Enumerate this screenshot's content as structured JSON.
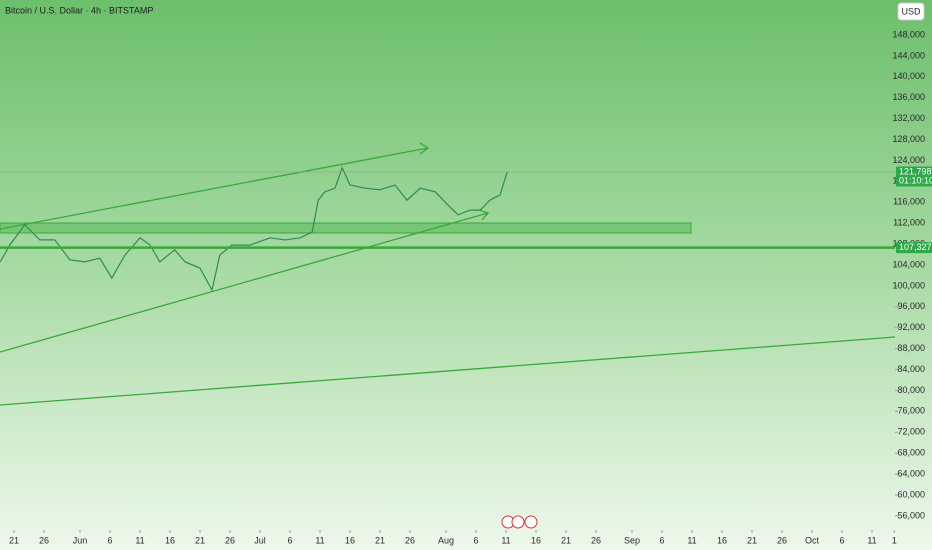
{
  "chart_data": {
    "type": "line",
    "title": "Bitcoin / U.S. Dollar · 4h · BITSTAMP",
    "currency": "USD",
    "color": "#2e8b57",
    "x": [
      -2.3,
      -0.7,
      1.8,
      4.3,
      6.8,
      9.3,
      11.8,
      14.3,
      16.3,
      18.5,
      21,
      22.7,
      24.3,
      26.8,
      28.5,
      31,
      33,
      34.3,
      36.3,
      39.3,
      42.7,
      45.2,
      47.7,
      49.7,
      50.7,
      51.8,
      53.5,
      54.7,
      56,
      58.5,
      61,
      63.5,
      65.5,
      67.7,
      70.2,
      72.3,
      74,
      76,
      77.7,
      79.3,
      81,
      82.2
    ],
    "values": [
      104600,
      107800,
      111700,
      108800,
      108800,
      105000,
      104600,
      105300,
      101500,
      105900,
      109200,
      107800,
      104600,
      106900,
      104600,
      103400,
      99200,
      105900,
      107800,
      107800,
      109200,
      108800,
      109200,
      110300,
      116400,
      118000,
      118700,
      122600,
      119300,
      118700,
      118400,
      119300,
      116400,
      118700,
      118000,
      115500,
      113600,
      114500,
      114500,
      116400,
      117400,
      121798
    ],
    "xlim": [
      -2.33,
      146.83
    ],
    "ylim": [
      53300,
      154700
    ],
    "xticks": [
      {
        "value": 0,
        "label": "21"
      },
      {
        "value": 5,
        "label": "26"
      },
      {
        "value": 11,
        "label": "Jun"
      },
      {
        "value": 16,
        "label": "6"
      },
      {
        "value": 21,
        "label": "11"
      },
      {
        "value": 26,
        "label": "16"
      },
      {
        "value": 31,
        "label": "21"
      },
      {
        "value": 36,
        "label": "26"
      },
      {
        "value": 41,
        "label": "Jul"
      },
      {
        "value": 46,
        "label": "6"
      },
      {
        "value": 51,
        "label": "11"
      },
      {
        "value": 56,
        "label": "16"
      },
      {
        "value": 61,
        "label": "21"
      },
      {
        "value": 66,
        "label": "26"
      },
      {
        "value": 72,
        "label": "Aug"
      },
      {
        "value": 77,
        "label": "6"
      },
      {
        "value": 82,
        "label": "11"
      },
      {
        "value": 87,
        "label": "16"
      },
      {
        "value": 92,
        "label": "21"
      },
      {
        "value": 97,
        "label": "26"
      },
      {
        "value": 103,
        "label": "Sep"
      },
      {
        "value": 108,
        "label": "6"
      },
      {
        "value": 113,
        "label": "11"
      },
      {
        "value": 118,
        "label": "16"
      },
      {
        "value": 123,
        "label": "21"
      },
      {
        "value": 128,
        "label": "26"
      },
      {
        "value": 133,
        "label": "Oct"
      },
      {
        "value": 138,
        "label": "6"
      },
      {
        "value": 143,
        "label": "11"
      },
      {
        "value": 146.7,
        "label": "1"
      }
    ],
    "yticks": [
      {
        "value": 56000,
        "label": "56,000"
      },
      {
        "value": 60000,
        "label": "60,000"
      },
      {
        "value": 64000,
        "label": "64,000"
      },
      {
        "value": 68000,
        "label": "68,000"
      },
      {
        "value": 72000,
        "label": "72,000"
      },
      {
        "value": 76000,
        "label": "76,000"
      },
      {
        "value": 80000,
        "label": "80,000"
      },
      {
        "value": 84000,
        "label": "84,000"
      },
      {
        "value": 88000,
        "label": "88,000"
      },
      {
        "value": 92000,
        "label": "92,000"
      },
      {
        "value": 96000,
        "label": "96,000"
      },
      {
        "value": 100000,
        "label": "100,000"
      },
      {
        "value": 104000,
        "label": "104,000"
      },
      {
        "value": 108000,
        "label": "108,000"
      },
      {
        "value": 112000,
        "label": "112,000"
      },
      {
        "value": 116000,
        "label": "116,000"
      },
      {
        "value": 120000,
        "label": "120,000"
      },
      {
        "value": 124000,
        "label": "124,000"
      },
      {
        "value": 128000,
        "label": "128,000"
      },
      {
        "value": 132000,
        "label": "132,000"
      },
      {
        "value": 136000,
        "label": "136,000"
      },
      {
        "value": 140000,
        "label": "140,000"
      },
      {
        "value": 144000,
        "label": "144,000"
      },
      {
        "value": 148000,
        "label": "148,000"
      }
    ],
    "price_labels": [
      {
        "value": 121798,
        "label": "121,798",
        "countdown": "01:10:10"
      },
      {
        "value": 107327,
        "label": "107,327"
      }
    ]
  }
}
